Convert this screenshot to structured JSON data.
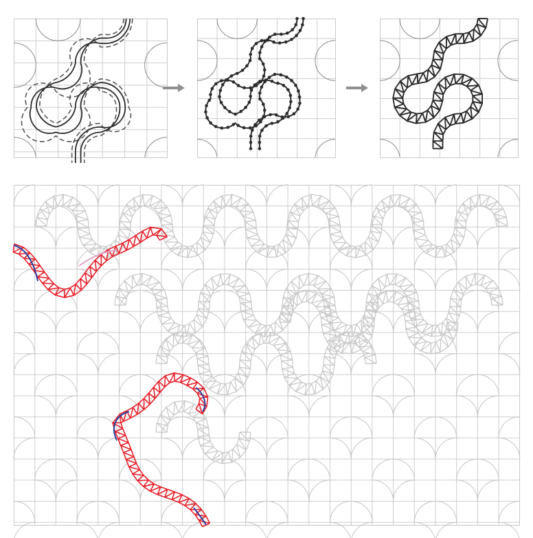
{
  "figure": {
    "steps": [
      {
        "name": "offset-curves",
        "style": "dashed"
      },
      {
        "name": "sampled-nodes",
        "style": "dots"
      },
      {
        "name": "truss-structure",
        "style": "lattice"
      }
    ],
    "arrow_icon": "right-arrow-icon",
    "colors": {
      "grid": "#cdcdcd",
      "tile_arc": "#8a8a8a",
      "ink": "#2b2b2b",
      "dashed": "#555555",
      "truss_gray": "#c9c9c9",
      "highlight_red": "#e8202a",
      "highlight_blue": "#2a3d9c",
      "highlight_pink": "#e0a3c8",
      "arrow": "#8f8f8f"
    }
  }
}
